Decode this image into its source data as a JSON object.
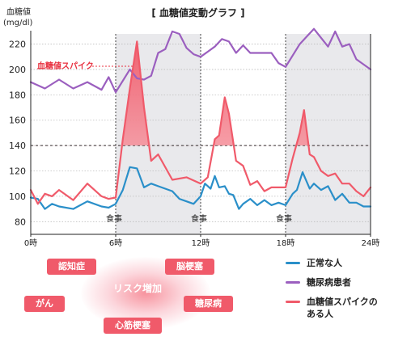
{
  "chart_data": {
    "type": "line",
    "title": "[ 血糖値変動グラフ ]",
    "ylabel_line1": "血糖値",
    "ylabel_line2": "(mg/dl)",
    "x_ticks": [
      {
        "value": 0,
        "label": "0時"
      },
      {
        "value": 6,
        "label": "6時"
      },
      {
        "value": 12,
        "label": "12時"
      },
      {
        "value": 18,
        "label": "18時"
      },
      {
        "value": 24,
        "label": "24時"
      }
    ],
    "y_ticks": [
      80,
      100,
      120,
      140,
      160,
      180,
      200,
      220
    ],
    "ylim": [
      70,
      228
    ],
    "xlim": [
      0,
      24
    ],
    "threshold": 140,
    "meal_times": [
      6,
      12,
      18
    ],
    "meal_label": "食事",
    "shaded_periods": [
      [
        6,
        12
      ],
      [
        18,
        24
      ]
    ],
    "spike_annotation": "血糖値スパイク",
    "series": [
      {
        "name": "正常な人",
        "color": "#2a8fc9",
        "x": [
          0,
          0.5,
          1,
          1.5,
          2,
          3,
          4,
          5,
          5.5,
          6,
          6.5,
          7,
          7.5,
          8,
          8.5,
          9,
          10,
          10.5,
          11,
          11.5,
          12,
          12.3,
          12.7,
          13,
          13.3,
          13.7,
          14,
          14.3,
          14.7,
          15,
          15.5,
          16,
          16.5,
          17,
          17.5,
          18,
          18.5,
          18.8,
          19.2,
          19.7,
          20,
          20.5,
          21,
          21.5,
          22,
          22.5,
          23,
          23.5,
          24
        ],
        "values": [
          99,
          98,
          90,
          94,
          92,
          90,
          96,
          92,
          91,
          94,
          105,
          123,
          122,
          107,
          110,
          108,
          104,
          98,
          96,
          94,
          100,
          110,
          106,
          116,
          107,
          108,
          102,
          101,
          90,
          94,
          98,
          93,
          97,
          93,
          95,
          93,
          102,
          105,
          119,
          106,
          110,
          105,
          108,
          97,
          102,
          95,
          95,
          92,
          92
        ]
      },
      {
        "name": "糖尿病患者",
        "color": "#9b5fbf",
        "x": [
          0,
          1,
          2,
          3,
          4,
          5,
          5.5,
          6,
          7,
          7.5,
          8,
          8.5,
          9,
          9.5,
          10,
          10.5,
          11,
          11.5,
          12,
          12.5,
          13,
          13.5,
          14,
          14.5,
          15,
          15.5,
          16,
          17,
          17.5,
          18,
          19,
          20,
          21,
          21.5,
          22,
          22.5,
          23,
          24
        ],
        "values": [
          190,
          185,
          192,
          185,
          190,
          184,
          194,
          182,
          200,
          193,
          192,
          195,
          213,
          216,
          230,
          228,
          217,
          212,
          210,
          214,
          218,
          224,
          222,
          213,
          219,
          213,
          213,
          213,
          205,
          202,
          220,
          232,
          218,
          230,
          218,
          220,
          208,
          200
        ]
      },
      {
        "name": "血糖値スパイクのある人",
        "color": "#f05a6a",
        "x": [
          0,
          0.5,
          1,
          1.5,
          2,
          3,
          4,
          5,
          5.5,
          6,
          6.5,
          7,
          7.5,
          8,
          8.5,
          9,
          10,
          11,
          12,
          12.5,
          13,
          13.3,
          13.7,
          14,
          14.5,
          15,
          15.5,
          16,
          16.5,
          17,
          17.5,
          18,
          18.5,
          19,
          19.3,
          19.7,
          20,
          20.5,
          21,
          21.5,
          22,
          22.5,
          23,
          23.5,
          24
        ],
        "values": [
          105,
          94,
          102,
          100,
          105,
          97,
          110,
          100,
          98,
          99,
          145,
          185,
          222,
          170,
          128,
          133,
          113,
          115,
          110,
          115,
          145,
          148,
          178,
          165,
          128,
          124,
          109,
          112,
          104,
          107,
          107,
          107,
          130,
          150,
          168,
          133,
          131,
          120,
          116,
          118,
          110,
          110,
          104,
          100,
          107
        ]
      }
    ]
  },
  "risk": {
    "center": "リスク増加",
    "items": [
      "認知症",
      "脳梗塞",
      "がん",
      "糖尿病",
      "心筋梗塞"
    ]
  },
  "legend": {
    "items": [
      {
        "label": "正常な人",
        "color": "#2a8fc9"
      },
      {
        "label": "糖尿病患者",
        "color": "#9b5fbf"
      },
      {
        "label": "血糖値スパイクのある人",
        "color": "#f05a6a"
      }
    ]
  }
}
